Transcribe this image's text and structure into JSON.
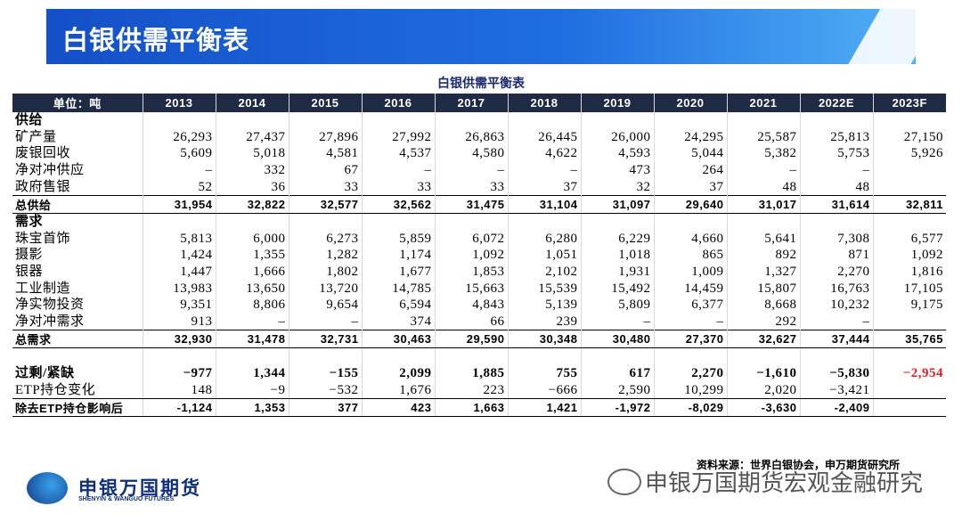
{
  "header": {
    "title": "白银供需平衡表"
  },
  "table": {
    "title": "白银供需平衡表",
    "columns": [
      "单位：吨",
      "2013",
      "2014",
      "2015",
      "2016",
      "2017",
      "2018",
      "2019",
      "2020",
      "2021",
      "2022E",
      "2023F"
    ],
    "sections": [
      {
        "title": "供给",
        "rows": [
          {
            "label": "矿产量",
            "values": [
              "26,293",
              "27,437",
              "27,896",
              "27,992",
              "26,863",
              "26,445",
              "26,000",
              "24,295",
              "25,587",
              "25,813",
              "27,150"
            ]
          },
          {
            "label": "废银回收",
            "values": [
              "5,609",
              "5,018",
              "4,581",
              "4,537",
              "4,580",
              "4,622",
              "4,593",
              "5,044",
              "5,382",
              "5,753",
              "5,926"
            ]
          },
          {
            "label": "净对冲供应",
            "values": [
              "–",
              "332",
              "67",
              "–",
              "–",
              "–",
              "473",
              "264",
              "–",
              "–",
              null
            ]
          },
          {
            "label": "政府售银",
            "values": [
              "52",
              "36",
              "33",
              "33",
              "33",
              "37",
              "32",
              "37",
              "48",
              "48",
              null
            ]
          }
        ],
        "total": {
          "label": "总供给",
          "values": [
            "31,954",
            "32,822",
            "32,577",
            "32,562",
            "31,475",
            "31,104",
            "31,097",
            "29,640",
            "31,017",
            "31,614",
            "32,811"
          ]
        }
      },
      {
        "title": "需求",
        "rows": [
          {
            "label": "珠宝首饰",
            "values": [
              "5,813",
              "6,000",
              "6,273",
              "5,859",
              "6,072",
              "6,280",
              "6,229",
              "4,660",
              "5,641",
              "7,308",
              "6,577"
            ]
          },
          {
            "label": "摄影",
            "values": [
              "1,424",
              "1,355",
              "1,282",
              "1,174",
              "1,092",
              "1,051",
              "1,018",
              "865",
              "892",
              "871",
              "1,092"
            ]
          },
          {
            "label": "银器",
            "values": [
              "1,447",
              "1,666",
              "1,802",
              "1,677",
              "1,853",
              "2,102",
              "1,931",
              "1,009",
              "1,327",
              "2,270",
              "1,816"
            ]
          },
          {
            "label": "工业制造",
            "values": [
              "13,983",
              "13,650",
              "13,720",
              "14,785",
              "15,663",
              "15,539",
              "15,492",
              "14,459",
              "15,807",
              "16,763",
              "17,105"
            ]
          },
          {
            "label": "净实物投资",
            "values": [
              "9,351",
              "8,806",
              "9,654",
              "6,594",
              "4,843",
              "5,139",
              "5,809",
              "6,377",
              "8,668",
              "10,232",
              "9,175"
            ]
          },
          {
            "label": "净对冲需求",
            "values": [
              "913",
              "–",
              "–",
              "374",
              "66",
              "239",
              "–",
              "–",
              "292",
              "–",
              null
            ]
          }
        ],
        "total": {
          "label": "总需求",
          "values": [
            "32,930",
            "31,478",
            "32,731",
            "30,463",
            "29,590",
            "30,348",
            "30,480",
            "27,370",
            "32,627",
            "37,444",
            "35,765"
          ]
        }
      }
    ],
    "balance": {
      "rows": [
        {
          "label": "过剩/紧缺",
          "values": [
            "−977",
            "1,344",
            "−155",
            "2,099",
            "1,885",
            "755",
            "617",
            "2,270",
            "−1,610",
            "−5,830",
            "−2,954"
          ]
        },
        {
          "label": "ETP持仓变化",
          "values": [
            "148",
            "−9",
            "−532",
            "1,676",
            "223",
            "−666",
            "2,590",
            "10,299",
            "2,020",
            "−3,421",
            null
          ]
        }
      ],
      "net": {
        "label": "除去ETP持仓影响后",
        "values": [
          "-1,124",
          "1,353",
          "377",
          "423",
          "1,663",
          "1,421",
          "-1,972",
          "-8,029",
          "-3,630",
          "-2,409",
          null
        ]
      }
    }
  },
  "footer": {
    "source": "资料来源：世界白银协会，申万期货研究所",
    "logo": {
      "name": "申银万国期货",
      "english": "SHENYIN & WANGUO FUTURES"
    },
    "watermark": "申银万国期货宏观金融研究"
  }
}
